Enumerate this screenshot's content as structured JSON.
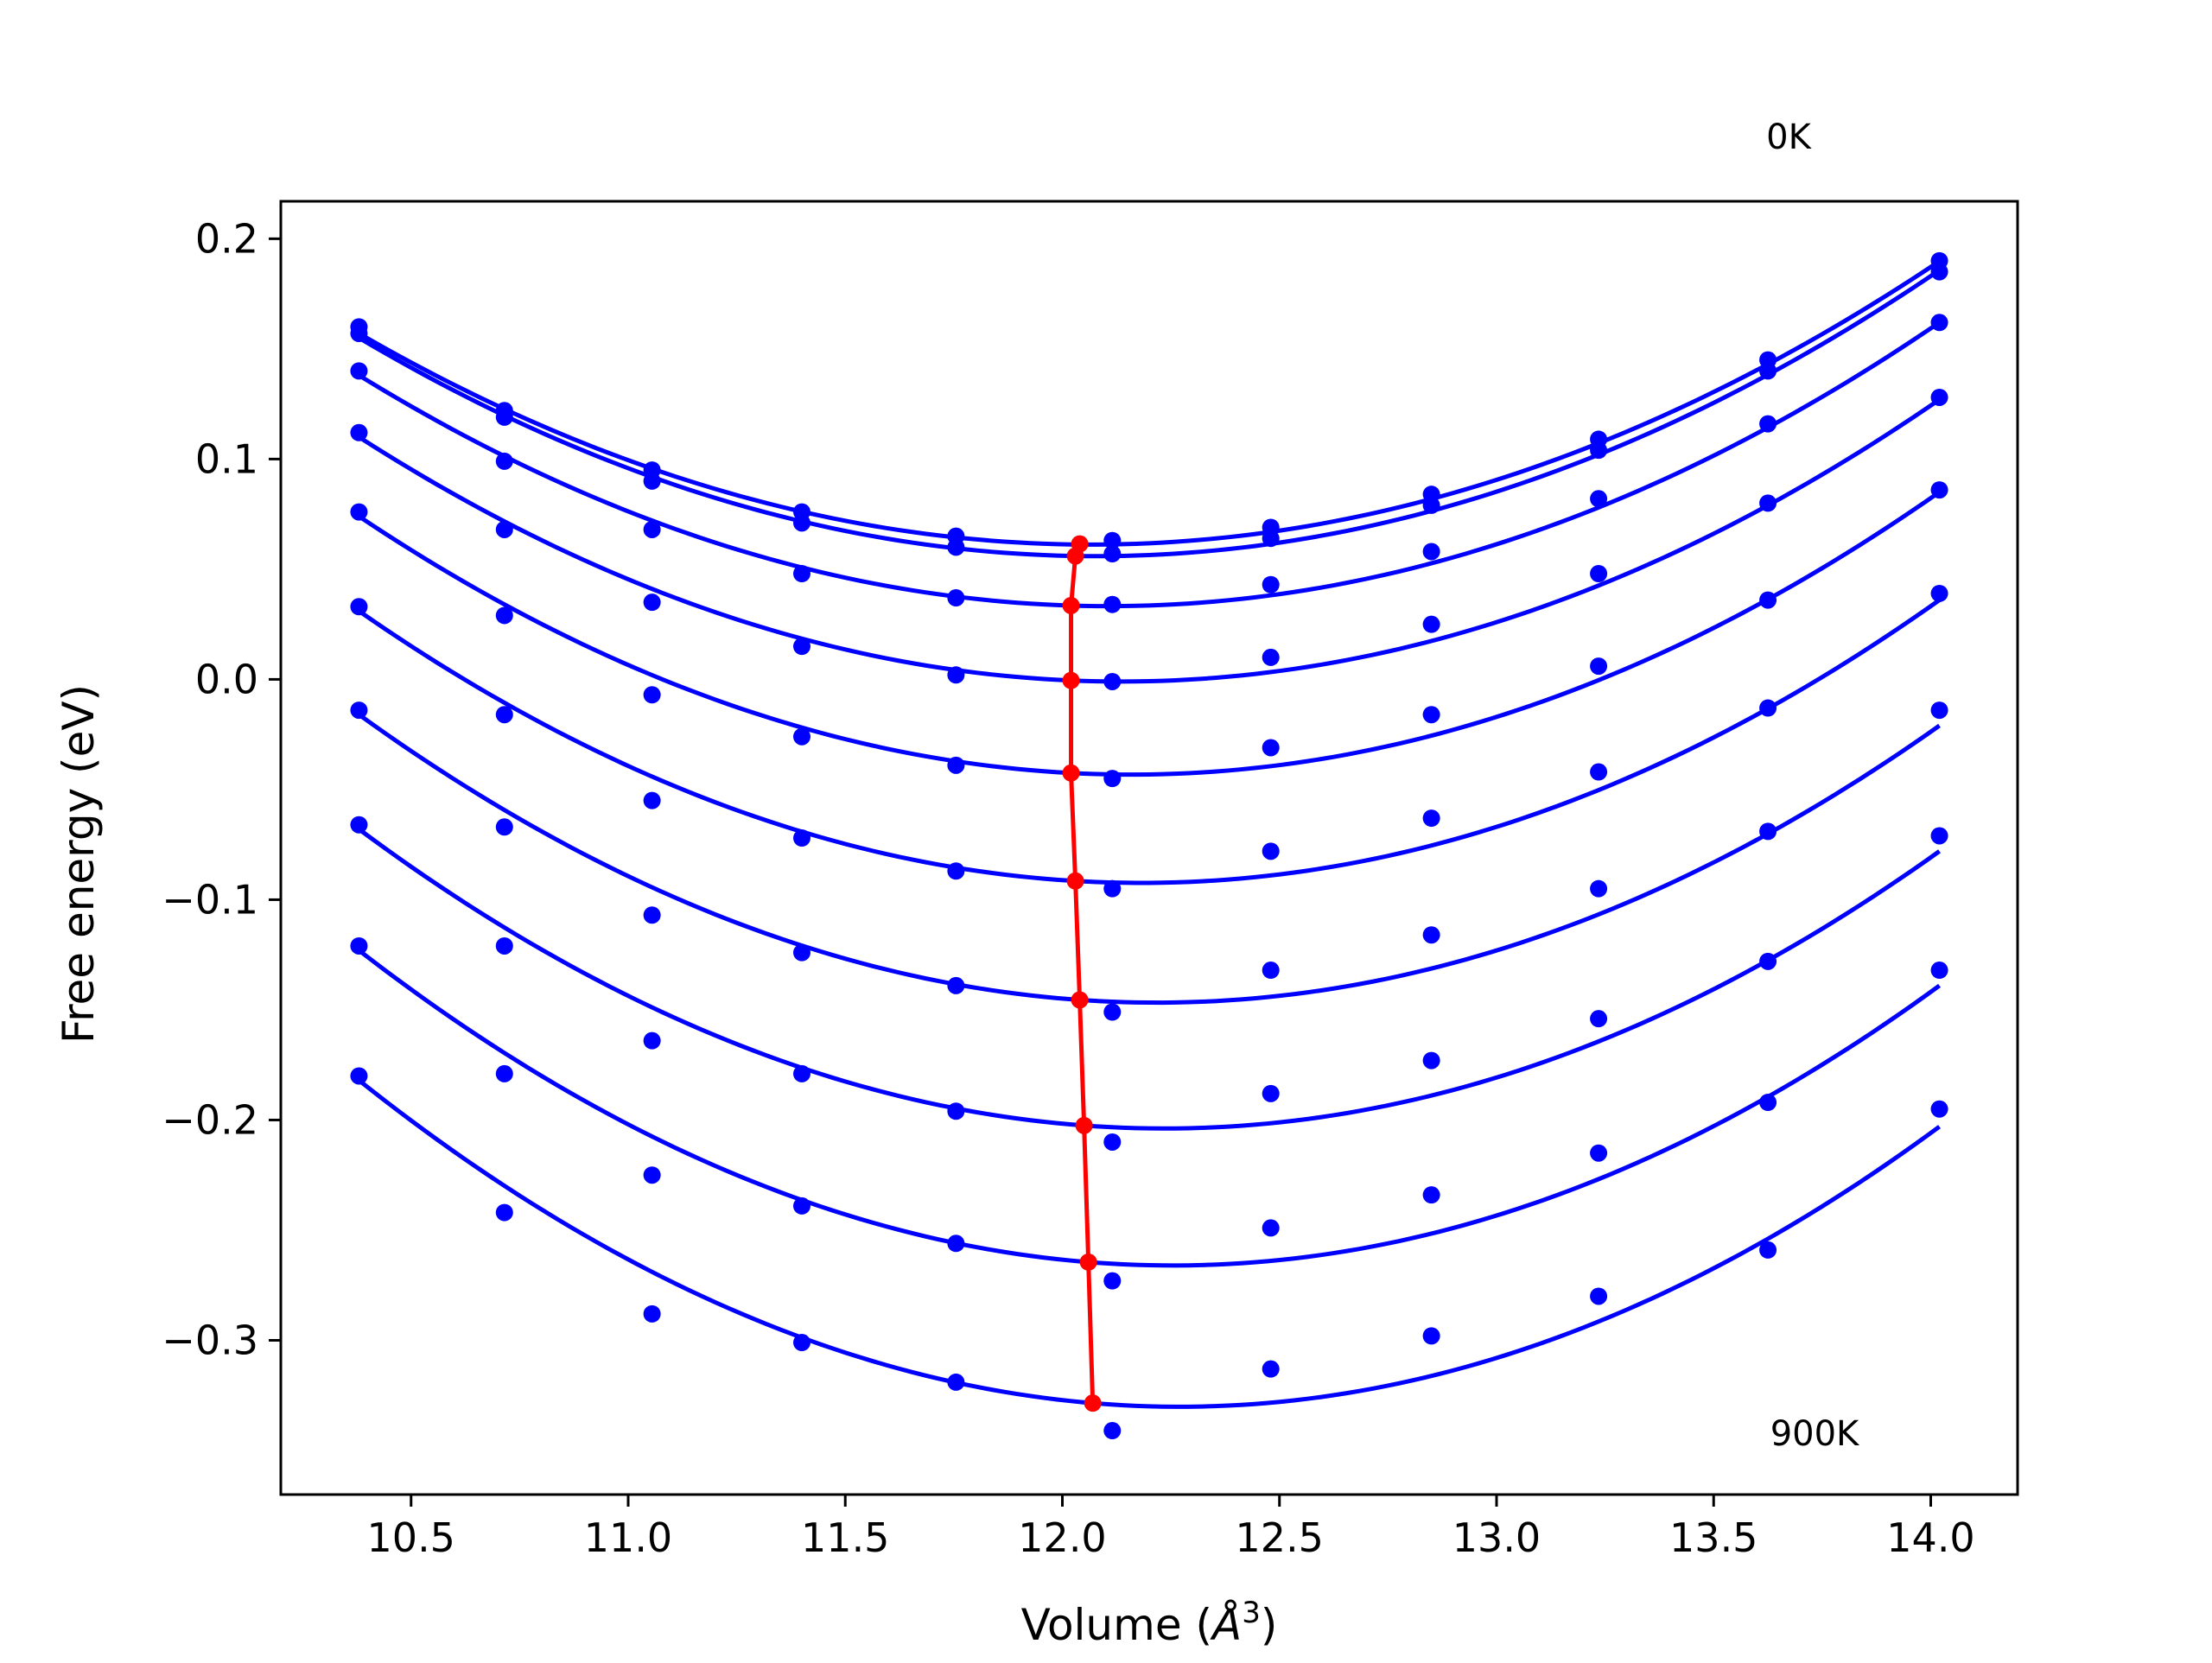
{
  "chart_data": {
    "type": "line",
    "title": "",
    "xlabel_text": "Volume (",
    "xlabel_symbol": "Å",
    "xlabel_exponent": "3",
    "xlabel_close": ")",
    "ylabel": "Free energy (eV)",
    "xlim": [
      10.2,
      14.2
    ],
    "ylim": [
      -0.37,
      0.217
    ],
    "xticks": [
      10.5,
      11.0,
      11.5,
      12.0,
      12.5,
      13.0,
      13.5,
      14.0
    ],
    "xtick_labels": [
      "10.5",
      "11.0",
      "11.5",
      "12.0",
      "12.5",
      "13.0",
      "13.5",
      "14.0"
    ],
    "yticks": [
      -0.3,
      -0.2,
      -0.1,
      0.0,
      0.1,
      0.2
    ],
    "ytick_labels": [
      "−0.3",
      "−0.2",
      "−0.1",
      "0.0",
      "0.1",
      "0.2"
    ],
    "annotations": {
      "top": "0K",
      "bottom": "900K"
    },
    "grid": false,
    "legend": "none",
    "colors": {
      "series": "#0000ff",
      "minima": "#ff0000",
      "axes": "#000000"
    },
    "x": [
      10.38,
      10.715,
      11.055,
      11.4,
      11.755,
      12.115,
      12.48,
      12.85,
      13.235,
      13.625,
      14.02
    ],
    "series": [
      {
        "points": [
          0.16,
          0.122,
          0.095,
          0.076,
          0.065,
          0.063,
          0.069,
          0.084,
          0.109,
          0.145,
          0.19
        ],
        "fit": [
          0.157,
          0.0612,
          0.1898
        ],
        "min_v": 12.04,
        "min_f": 0.0615
      },
      {
        "points": [
          0.157,
          0.119,
          0.09,
          0.071,
          0.06,
          0.057,
          0.064,
          0.079,
          0.104,
          0.14,
          0.185
        ],
        "fit": [
          0.155,
          0.056,
          0.1857
        ],
        "min_v": 12.03,
        "min_f": 0.056
      },
      {
        "points": [
          0.14,
          0.099,
          0.068,
          0.048,
          0.037,
          0.034,
          0.043,
          0.058,
          0.082,
          0.116,
          0.162
        ],
        "fit": [
          0.138,
          0.0335,
          0.162
        ],
        "min_v": 12.02,
        "min_f": 0.0335
      },
      {
        "points": [
          0.112,
          0.068,
          0.035,
          0.015,
          0.002,
          -0.001,
          0.01,
          0.025,
          0.048,
          0.08,
          0.128
        ],
        "fit": [
          0.11,
          -0.0005,
          0.127
        ],
        "min_v": 12.02,
        "min_f": -0.0005
      },
      {
        "points": [
          0.076,
          0.029,
          -0.007,
          -0.026,
          -0.039,
          -0.045,
          -0.031,
          -0.016,
          0.006,
          0.036,
          0.086
        ],
        "fit": [
          0.074,
          -0.0425,
          0.085
        ],
        "min_v": 12.02,
        "min_f": -0.0425
      },
      {
        "points": [
          0.033,
          -0.016,
          -0.055,
          -0.072,
          -0.087,
          -0.095,
          -0.078,
          -0.063,
          -0.042,
          -0.013,
          0.039
        ],
        "fit": [
          0.031,
          -0.0915,
          0.036
        ],
        "min_v": 12.03,
        "min_f": -0.0915
      },
      {
        "points": [
          -0.014,
          -0.067,
          -0.107,
          -0.124,
          -0.139,
          -0.151,
          -0.132,
          -0.116,
          -0.095,
          -0.069,
          -0.014
        ],
        "fit": [
          -0.016,
          -0.1455,
          -0.021
        ],
        "min_v": 12.04,
        "min_f": -0.1455
      },
      {
        "points": [
          -0.066,
          -0.121,
          -0.164,
          -0.179,
          -0.196,
          -0.21,
          -0.188,
          -0.173,
          -0.154,
          -0.128,
          -0.071
        ],
        "fit": [
          -0.068,
          -0.2025,
          -0.078
        ],
        "min_v": 12.05,
        "min_f": -0.2025
      },
      {
        "points": [
          -0.121,
          -0.179,
          -0.225,
          -0.239,
          -0.256,
          -0.273,
          -0.249,
          -0.234,
          -0.215,
          -0.192,
          -0.132
        ],
        "fit": [
          -0.123,
          -0.2645,
          -0.139
        ],
        "min_v": 12.06,
        "min_f": -0.2645
      },
      {
        "points": [
          -0.18,
          -0.242,
          -0.288,
          -0.301,
          -0.319,
          -0.341,
          -0.313,
          -0.298,
          -0.28,
          -0.259,
          -0.195
        ],
        "fit": [
          -0.182,
          -0.3285,
          -0.203
        ],
        "min_v": 12.07,
        "min_f": -0.3285
      }
    ]
  }
}
